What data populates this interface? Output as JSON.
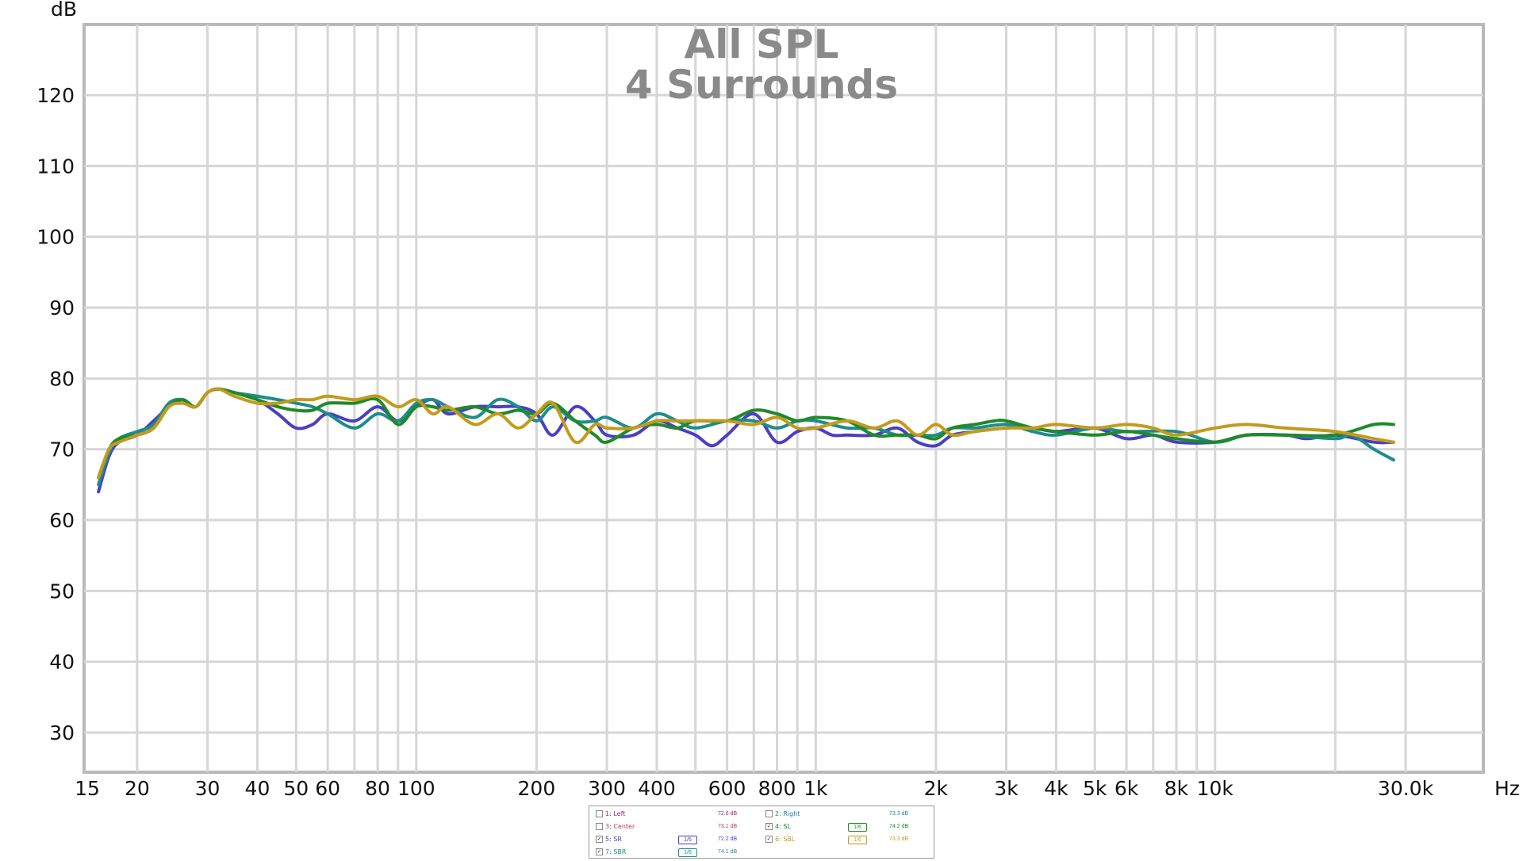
{
  "chart_data": {
    "type": "line",
    "title": "All SPL",
    "subtitle": "4 Surrounds",
    "ylabel": "dB",
    "xunit": "Hz",
    "xscale": "log",
    "xlim": [
      15,
      30000
    ],
    "ylim": [
      25,
      130
    ],
    "grid": true,
    "y_ticks": [
      30,
      40,
      50,
      60,
      70,
      80,
      90,
      100,
      110,
      120
    ],
    "x_ticks": [
      {
        "value": 15,
        "label": "15"
      },
      {
        "value": 20,
        "label": "20"
      },
      {
        "value": 30,
        "label": "30"
      },
      {
        "value": 40,
        "label": "40"
      },
      {
        "value": 50,
        "label": "50"
      },
      {
        "value": 60,
        "label": "60"
      },
      {
        "value": 80,
        "label": "80"
      },
      {
        "value": 100,
        "label": "100"
      },
      {
        "value": 200,
        "label": "200"
      },
      {
        "value": 300,
        "label": "300"
      },
      {
        "value": 400,
        "label": "400"
      },
      {
        "value": 600,
        "label": "600"
      },
      {
        "value": 800,
        "label": "800"
      },
      {
        "value": 1000,
        "label": "1k"
      },
      {
        "value": 2000,
        "label": "2k"
      },
      {
        "value": 3000,
        "label": "3k"
      },
      {
        "value": 4000,
        "label": "4k"
      },
      {
        "value": 5000,
        "label": "5k"
      },
      {
        "value": 6000,
        "label": "6k"
      },
      {
        "value": 8000,
        "label": "8k"
      },
      {
        "value": 10000,
        "label": "10k"
      },
      {
        "value": 30000,
        "label": "30.0k"
      }
    ],
    "series": [
      {
        "name": "5: SR",
        "color": "#4a3fc4",
        "points": [
          [
            16,
            64
          ],
          [
            17,
            69
          ],
          [
            18,
            71
          ],
          [
            20,
            72
          ],
          [
            22,
            74
          ],
          [
            24,
            76
          ],
          [
            26,
            77
          ],
          [
            28,
            76
          ],
          [
            30,
            78
          ],
          [
            32,
            78.5
          ],
          [
            35,
            78
          ],
          [
            40,
            77
          ],
          [
            45,
            75
          ],
          [
            50,
            73
          ],
          [
            55,
            73.5
          ],
          [
            60,
            75
          ],
          [
            70,
            74
          ],
          [
            80,
            76
          ],
          [
            90,
            74
          ],
          [
            100,
            76
          ],
          [
            110,
            77
          ],
          [
            120,
            75
          ],
          [
            140,
            76
          ],
          [
            160,
            76
          ],
          [
            180,
            76
          ],
          [
            200,
            75
          ],
          [
            220,
            72
          ],
          [
            250,
            76
          ],
          [
            280,
            74
          ],
          [
            300,
            72
          ],
          [
            350,
            72
          ],
          [
            400,
            74
          ],
          [
            450,
            73
          ],
          [
            500,
            72
          ],
          [
            550,
            70.5
          ],
          [
            600,
            72
          ],
          [
            700,
            75
          ],
          [
            800,
            71
          ],
          [
            900,
            72.5
          ],
          [
            1000,
            73
          ],
          [
            1100,
            72
          ],
          [
            1200,
            72
          ],
          [
            1400,
            72
          ],
          [
            1600,
            73
          ],
          [
            1800,
            71
          ],
          [
            2000,
            70.5
          ],
          [
            2200,
            72
          ],
          [
            2500,
            72.5
          ],
          [
            3000,
            73
          ],
          [
            3500,
            73
          ],
          [
            4000,
            72.5
          ],
          [
            5000,
            73
          ],
          [
            6000,
            71.5
          ],
          [
            7000,
            72
          ],
          [
            8000,
            71
          ],
          [
            10000,
            71
          ],
          [
            12000,
            72
          ],
          [
            15000,
            72
          ],
          [
            17000,
            71.5
          ],
          [
            20000,
            72
          ],
          [
            25000,
            71
          ],
          [
            28000,
            71
          ]
        ]
      },
      {
        "name": "7: SBR",
        "color": "#1e8c8c",
        "points": [
          [
            16,
            65
          ],
          [
            17,
            69.5
          ],
          [
            18,
            71.5
          ],
          [
            20,
            72.5
          ],
          [
            22,
            73.5
          ],
          [
            24,
            76.5
          ],
          [
            26,
            77
          ],
          [
            28,
            76
          ],
          [
            30,
            78
          ],
          [
            32,
            78.5
          ],
          [
            35,
            78
          ],
          [
            40,
            77.5
          ],
          [
            45,
            77
          ],
          [
            50,
            76.5
          ],
          [
            55,
            76
          ],
          [
            60,
            75
          ],
          [
            70,
            73
          ],
          [
            80,
            75
          ],
          [
            90,
            74
          ],
          [
            100,
            76.5
          ],
          [
            110,
            77
          ],
          [
            120,
            76
          ],
          [
            140,
            74.5
          ],
          [
            160,
            77
          ],
          [
            180,
            76
          ],
          [
            200,
            74
          ],
          [
            220,
            76
          ],
          [
            250,
            74
          ],
          [
            280,
            74
          ],
          [
            300,
            74.5
          ],
          [
            350,
            73
          ],
          [
            400,
            75
          ],
          [
            450,
            74
          ],
          [
            500,
            73
          ],
          [
            600,
            74
          ],
          [
            700,
            74
          ],
          [
            800,
            73
          ],
          [
            900,
            74
          ],
          [
            1000,
            74
          ],
          [
            1200,
            73
          ],
          [
            1400,
            73
          ],
          [
            1600,
            72
          ],
          [
            1800,
            72
          ],
          [
            2000,
            72
          ],
          [
            2200,
            73
          ],
          [
            2500,
            73
          ],
          [
            3000,
            73.5
          ],
          [
            3500,
            72.5
          ],
          [
            4000,
            72
          ],
          [
            5000,
            73
          ],
          [
            6000,
            72.5
          ],
          [
            8000,
            72.5
          ],
          [
            10000,
            71
          ],
          [
            12000,
            72
          ],
          [
            15000,
            72
          ],
          [
            20000,
            71.5
          ],
          [
            22000,
            72
          ],
          [
            25000,
            70
          ],
          [
            28000,
            68.5
          ]
        ]
      },
      {
        "name": "4: SL",
        "color": "#1f8a2a",
        "points": [
          [
            16,
            66
          ],
          [
            17,
            70
          ],
          [
            18,
            71.5
          ],
          [
            20,
            72
          ],
          [
            22,
            73
          ],
          [
            24,
            76
          ],
          [
            26,
            77
          ],
          [
            28,
            76
          ],
          [
            30,
            78
          ],
          [
            32,
            78.5
          ],
          [
            35,
            78
          ],
          [
            40,
            77
          ],
          [
            45,
            76
          ],
          [
            50,
            75.5
          ],
          [
            55,
            75.5
          ],
          [
            60,
            76.5
          ],
          [
            70,
            76.5
          ],
          [
            80,
            77
          ],
          [
            90,
            73.5
          ],
          [
            100,
            76
          ],
          [
            110,
            76
          ],
          [
            120,
            75.5
          ],
          [
            140,
            76
          ],
          [
            160,
            75
          ],
          [
            180,
            75.5
          ],
          [
            200,
            75
          ],
          [
            220,
            76.5
          ],
          [
            250,
            74
          ],
          [
            280,
            72
          ],
          [
            300,
            71
          ],
          [
            350,
            73
          ],
          [
            400,
            73.5
          ],
          [
            450,
            73
          ],
          [
            500,
            74
          ],
          [
            600,
            74
          ],
          [
            700,
            75.5
          ],
          [
            800,
            75
          ],
          [
            900,
            74
          ],
          [
            1000,
            74.5
          ],
          [
            1200,
            74
          ],
          [
            1400,
            72
          ],
          [
            1600,
            72
          ],
          [
            1800,
            72
          ],
          [
            2000,
            71.5
          ],
          [
            2200,
            73
          ],
          [
            2500,
            73.5
          ],
          [
            2800,
            74
          ],
          [
            3000,
            74
          ],
          [
            3500,
            73
          ],
          [
            4000,
            72.5
          ],
          [
            5000,
            72
          ],
          [
            6000,
            72.5
          ],
          [
            7000,
            72
          ],
          [
            8000,
            71.5
          ],
          [
            10000,
            71
          ],
          [
            12000,
            72
          ],
          [
            15000,
            72
          ],
          [
            20000,
            72
          ],
          [
            25000,
            73.5
          ],
          [
            28000,
            73.5
          ]
        ]
      },
      {
        "name": "6: SBL",
        "color": "#c49a1c",
        "points": [
          [
            16,
            66
          ],
          [
            17,
            70
          ],
          [
            18,
            71
          ],
          [
            20,
            72
          ],
          [
            22,
            73
          ],
          [
            24,
            76
          ],
          [
            26,
            76.5
          ],
          [
            28,
            76
          ],
          [
            30,
            78
          ],
          [
            32,
            78.5
          ],
          [
            35,
            77.5
          ],
          [
            40,
            76.5
          ],
          [
            45,
            76.5
          ],
          [
            50,
            77
          ],
          [
            55,
            77
          ],
          [
            60,
            77.5
          ],
          [
            70,
            77
          ],
          [
            80,
            77.5
          ],
          [
            90,
            76
          ],
          [
            100,
            77
          ],
          [
            110,
            75
          ],
          [
            120,
            76
          ],
          [
            140,
            73.5
          ],
          [
            160,
            75
          ],
          [
            180,
            73
          ],
          [
            200,
            75
          ],
          [
            220,
            76.5
          ],
          [
            250,
            71
          ],
          [
            280,
            73.5
          ],
          [
            300,
            73
          ],
          [
            350,
            73
          ],
          [
            400,
            74
          ],
          [
            450,
            74
          ],
          [
            500,
            74
          ],
          [
            600,
            74
          ],
          [
            700,
            73.5
          ],
          [
            800,
            74.5
          ],
          [
            900,
            73
          ],
          [
            1000,
            73
          ],
          [
            1200,
            74
          ],
          [
            1400,
            73
          ],
          [
            1600,
            74
          ],
          [
            1800,
            72
          ],
          [
            2000,
            73.5
          ],
          [
            2200,
            72
          ],
          [
            2500,
            72.5
          ],
          [
            3000,
            73
          ],
          [
            3500,
            73
          ],
          [
            4000,
            73.5
          ],
          [
            5000,
            73
          ],
          [
            6000,
            73.5
          ],
          [
            7000,
            73
          ],
          [
            8000,
            72
          ],
          [
            10000,
            73
          ],
          [
            12000,
            73.5
          ],
          [
            15000,
            73
          ],
          [
            20000,
            72.5
          ],
          [
            25000,
            71.5
          ],
          [
            28000,
            71
          ]
        ]
      }
    ]
  },
  "legend": {
    "items": [
      {
        "label": "1: Left",
        "value": "72.6 dB",
        "checked": false,
        "smoothing": "",
        "color": "#9a2a6a"
      },
      {
        "label": "2: Right",
        "value": "73.3 dB",
        "checked": false,
        "smoothing": "",
        "color": "#2a7aa0"
      },
      {
        "label": "3: Center",
        "value": "73.1 dB",
        "checked": false,
        "smoothing": "",
        "color": "#b03a6a"
      },
      {
        "label": "4: SL",
        "value": "74.2 dB",
        "checked": true,
        "smoothing": "1/6",
        "color": "#1f8a2a"
      },
      {
        "label": "5: SR",
        "value": "72.2 dB",
        "checked": true,
        "smoothing": "1/6",
        "color": "#4a3fc4"
      },
      {
        "label": "6: SBL",
        "value": "73.3 dB",
        "checked": true,
        "smoothing": "1/6",
        "color": "#c49a1c"
      },
      {
        "label": "7: SBR",
        "value": "74.1 dB",
        "checked": true,
        "smoothing": "1/6",
        "color": "#1e8c8c"
      }
    ]
  }
}
